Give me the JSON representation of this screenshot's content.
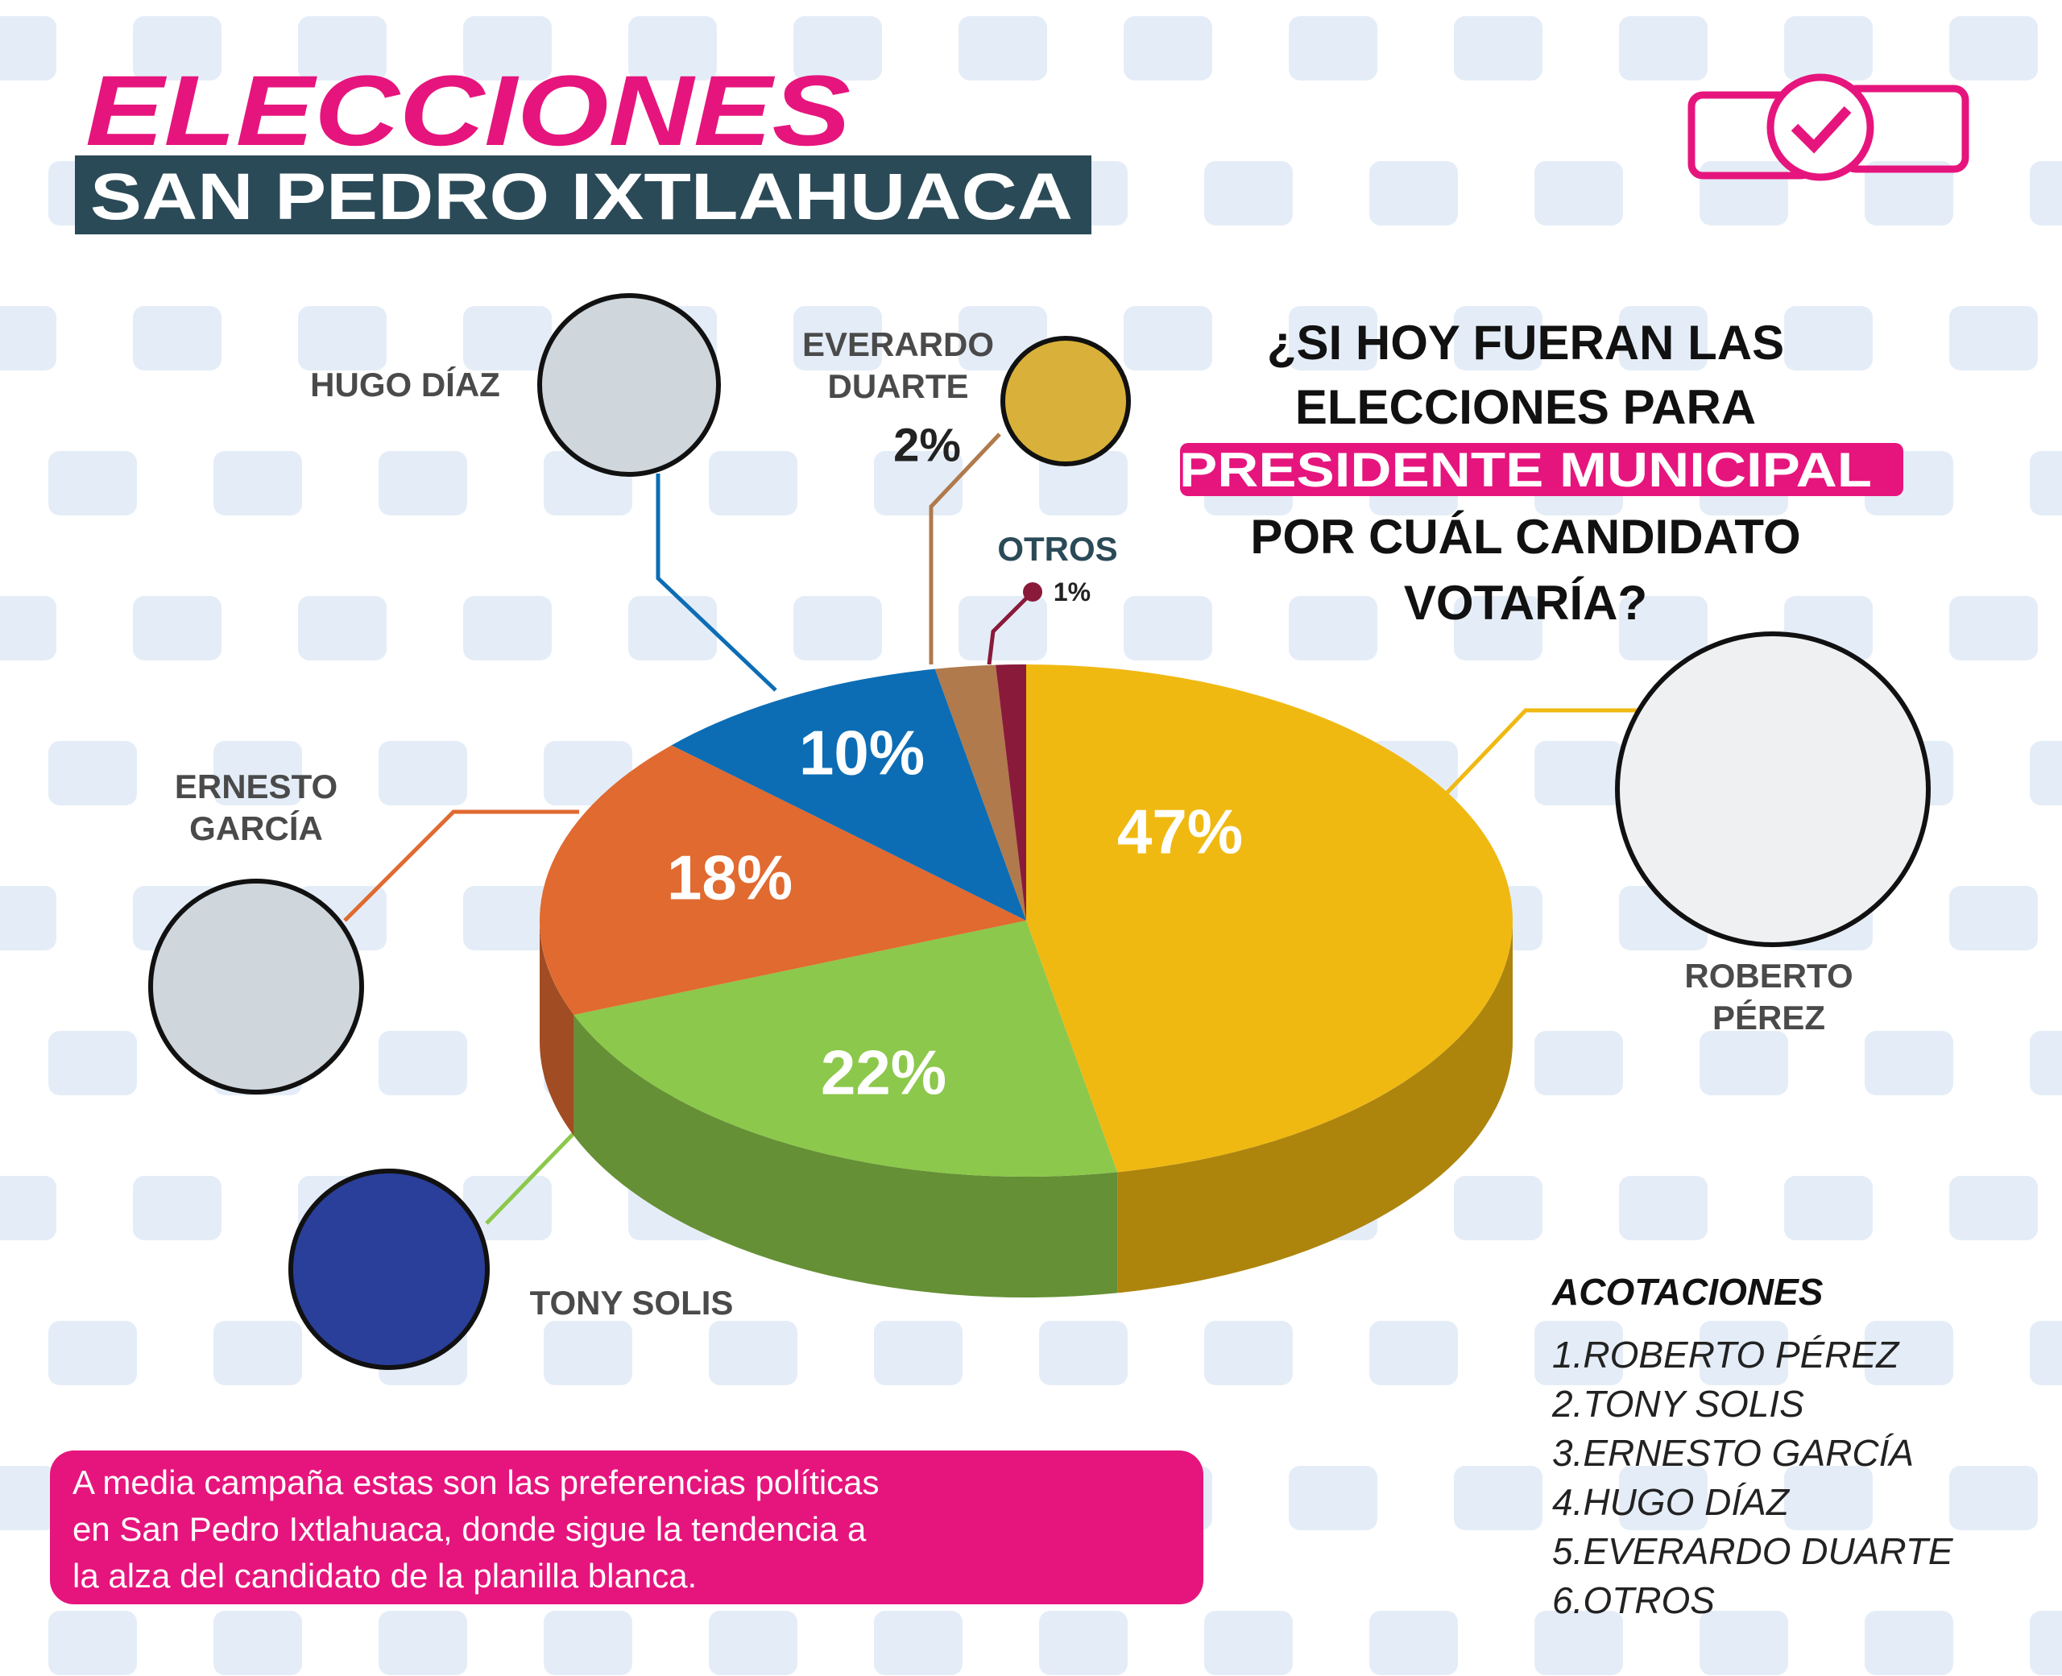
{
  "chart_data": {
    "type": "pie",
    "title": "ELECCIONES",
    "subtitle": "SAN PEDRO IXTLAHUACA",
    "question": {
      "before": [
        "¿SI HOY FUERAN LAS",
        "ELECCIONES PARA"
      ],
      "highlight": "PRESIDENTE MUNICIPAL",
      "after": [
        "POR CUÁL CANDIDATO",
        "VOTARÍA?"
      ]
    },
    "categories": [
      "ROBERTO PÉREZ",
      "TONY SOLIS",
      "ERNESTO GARCÍA",
      "HUGO DÍAZ",
      "EVERARDO DUARTE",
      "OTROS"
    ],
    "values": [
      47,
      22,
      18,
      10,
      2,
      1
    ],
    "value_labels": [
      "47%",
      "22%",
      "18%",
      "10%",
      "2%",
      "1%"
    ],
    "colors": [
      "#f0b912",
      "#8cc84b",
      "#e06a30",
      "#0c6db5",
      "#b07a4c",
      "#8a1a3a"
    ],
    "legend": {
      "title": "ACOTACIONES",
      "items": [
        "1.ROBERTO PÉREZ",
        "2.TONY SOLIS",
        "3.ERNESTO GARCÍA",
        "4.HUGO DÍAZ",
        "5.EVERARDO DUARTE",
        "6.OTROS"
      ]
    },
    "note": [
      "A media campaña estas son las preferencias políticas",
      "en San Pedro Ixtlahuaca, donde sigue la tendencia a",
      "la alza del candidato de la planilla blanca."
    ]
  }
}
